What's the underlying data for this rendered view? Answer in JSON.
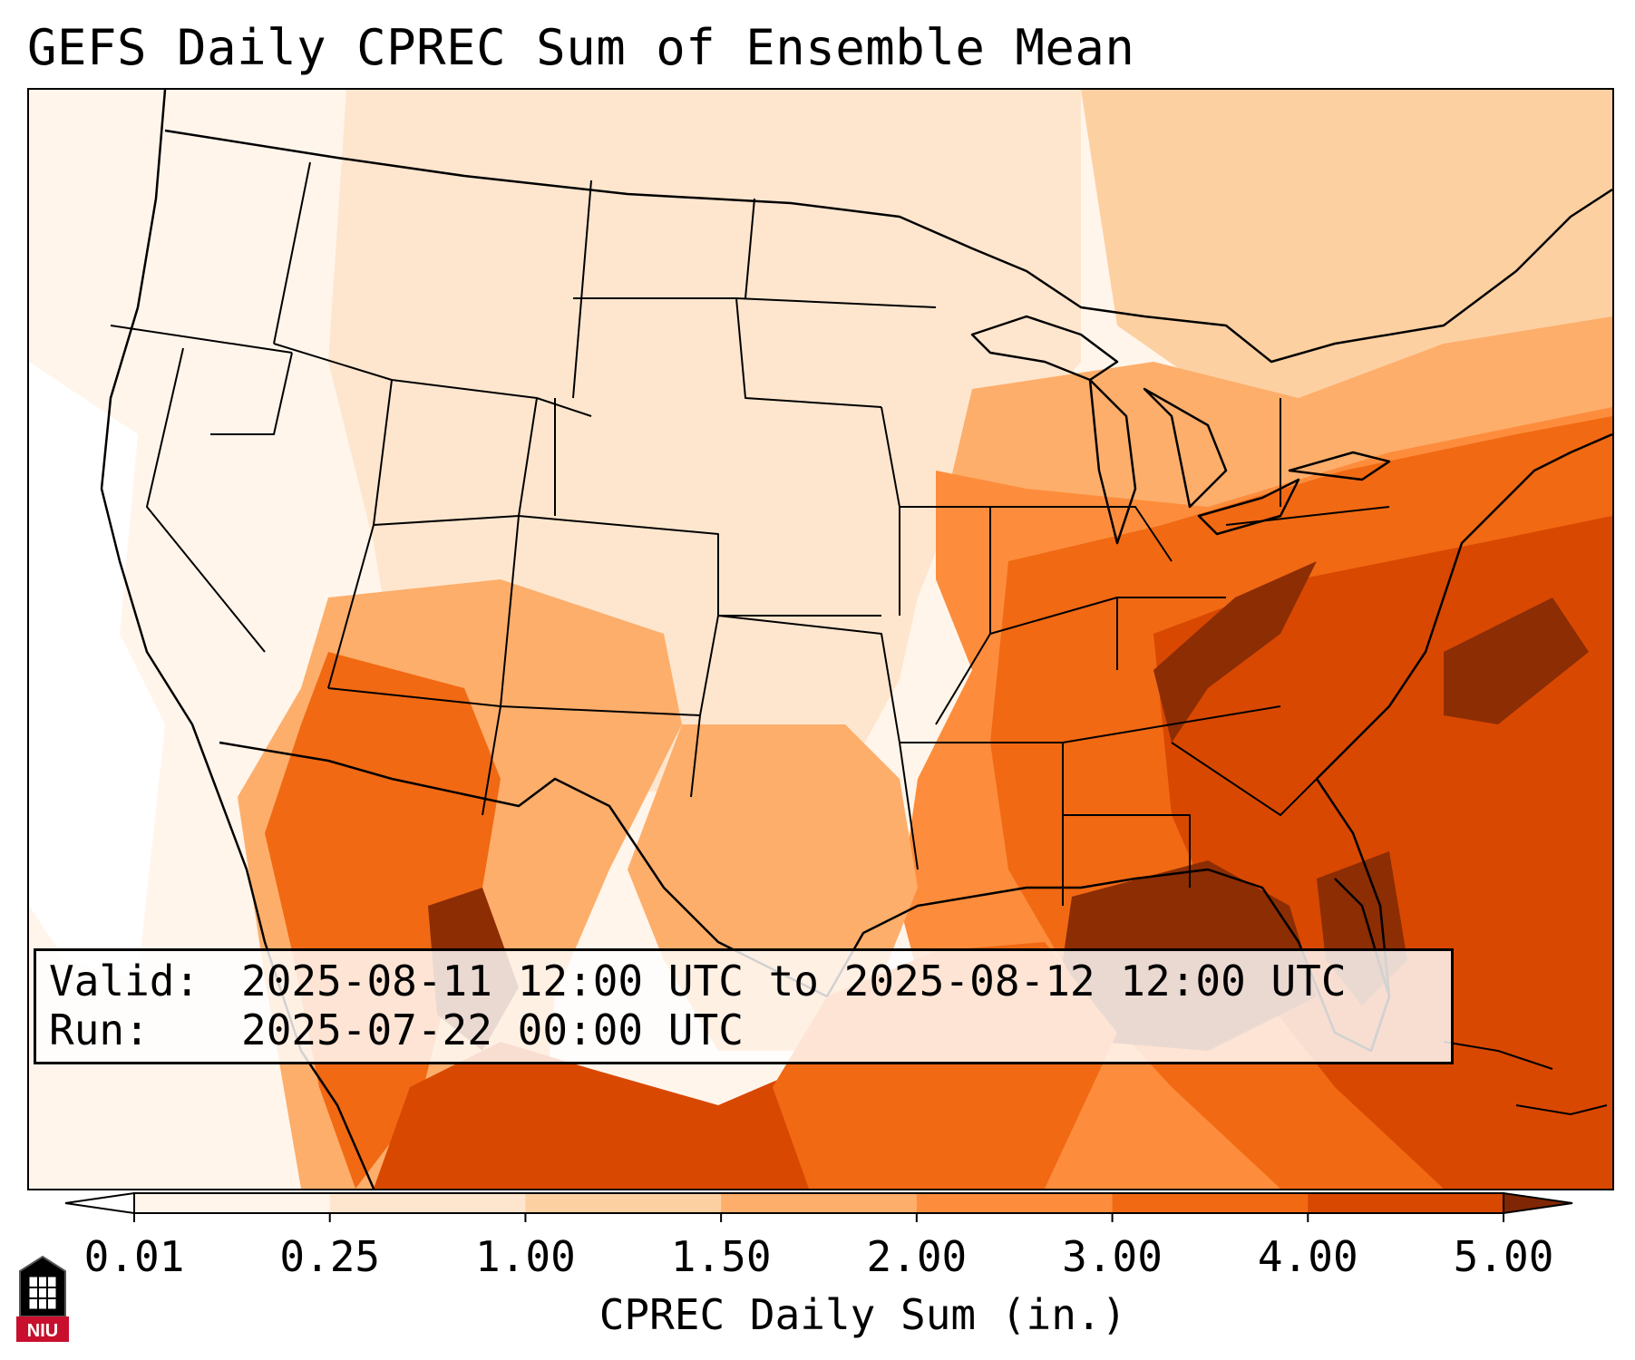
{
  "title": "GEFS Daily CPREC Sum of Ensemble Mean",
  "info": {
    "valid_label": "Valid:",
    "valid_value": "2025-08-11 12:00 UTC to 2025-08-12 12:00 UTC",
    "run_label": "Run:",
    "run_value": "2025-07-22 00:00 UTC"
  },
  "colorbar": {
    "label": "CPREC Daily Sum (in.)",
    "ticks": [
      "0.01",
      "0.25",
      "1.00",
      "1.50",
      "2.00",
      "3.00",
      "4.00",
      "5.00"
    ],
    "colors": [
      "#fff5eb",
      "#fee6ce",
      "#fdd0a2",
      "#fdae6b",
      "#fd8d3c",
      "#f16913",
      "#d94801",
      "#8c2d04"
    ],
    "under_color": "#ffffff",
    "over_color": "#7f2704",
    "extend": "both"
  },
  "logo": {
    "text": "NIU",
    "colors": [
      "#c8102e",
      "#000000",
      "#ffffff"
    ]
  },
  "map": {
    "projection": "Lambert conformal (CONUS)",
    "borders": [
      "coastline",
      "country borders",
      "US state borders"
    ]
  }
}
